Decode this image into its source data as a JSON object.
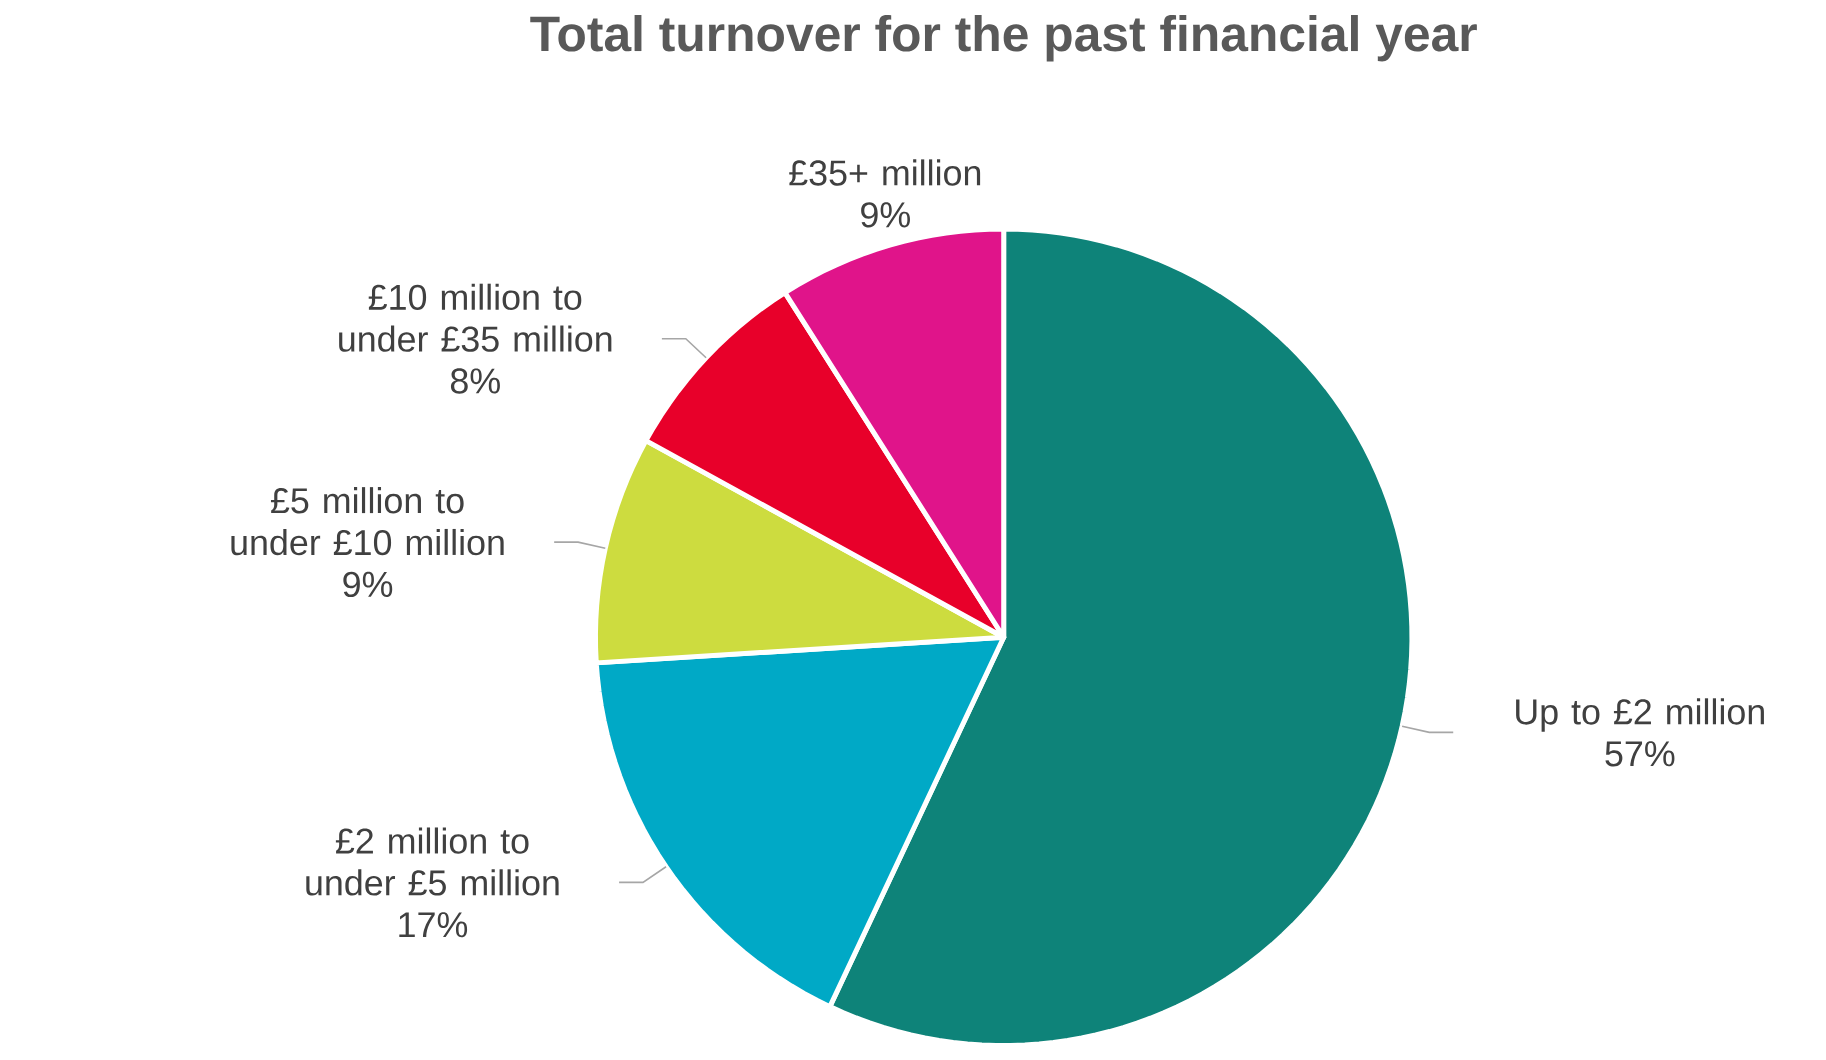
{
  "chart_data": {
    "type": "pie",
    "title": "Total turnover for the past financial year",
    "categories": [
      "Up to £2 million",
      "£2 million to under £5 million",
      "£5 million to under £10 million",
      "£10 million to under £35 million",
      "£35+ million"
    ],
    "values": [
      57,
      17,
      9,
      8,
      9
    ],
    "value_labels": [
      "57%",
      "17%",
      "9%",
      "8%",
      "9%"
    ],
    "colors": [
      "#0e8379",
      "#00a9c6",
      "#cddc3f",
      "#e8002a",
      "#e0148a"
    ]
  }
}
